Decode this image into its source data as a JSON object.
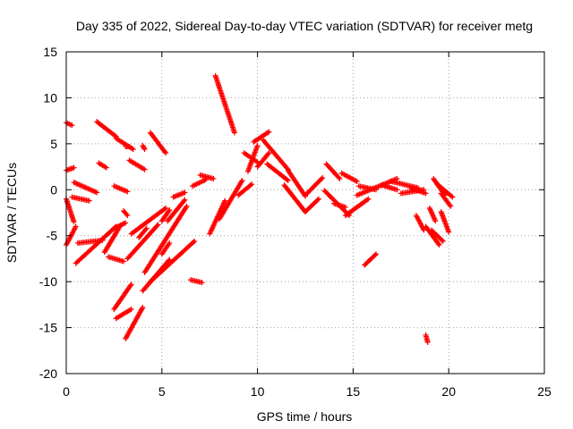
{
  "chart_data": {
    "type": "scatter",
    "title": "Day 335 of 2022, Sidereal Day-to-day VTEC variation (SDTVAR) for receiver metg",
    "xlabel": "GPS time / hours",
    "ylabel": "SDTVAR / TECUs",
    "xlim": [
      0,
      25
    ],
    "ylim": [
      -20,
      15
    ],
    "xticks": [
      0,
      5,
      10,
      15,
      20,
      25
    ],
    "yticks": [
      -20,
      -15,
      -10,
      -5,
      0,
      5,
      10,
      15
    ],
    "grid": true,
    "marker": "plus",
    "color": "#ff0000",
    "tracks": [
      {
        "x": [
          0.0,
          0.3
        ],
        "y": [
          7.3,
          7.0
        ]
      },
      {
        "x": [
          0.0,
          0.4
        ],
        "y": [
          2.1,
          2.4
        ]
      },
      {
        "x": [
          0.0,
          0.4
        ],
        "y": [
          -1.0,
          -3.5
        ]
      },
      {
        "x": [
          0.0,
          0.5
        ],
        "y": [
          -6.0,
          -4.0
        ]
      },
      {
        "x": [
          0.3,
          1.2
        ],
        "y": [
          -0.8,
          -1.2
        ]
      },
      {
        "x": [
          0.4,
          1.6
        ],
        "y": [
          0.8,
          -0.3
        ]
      },
      {
        "x": [
          0.5,
          2.6
        ],
        "y": [
          -8.0,
          -4.0
        ]
      },
      {
        "x": [
          0.6,
          1.9
        ],
        "y": [
          -5.8,
          -5.5
        ]
      },
      {
        "x": [
          1.6,
          2.6
        ],
        "y": [
          7.4,
          5.8
        ]
      },
      {
        "x": [
          2.6,
          3.5
        ],
        "y": [
          5.6,
          4.4
        ]
      },
      {
        "x": [
          1.7,
          2.1
        ],
        "y": [
          2.9,
          2.4
        ]
      },
      {
        "x": [
          2.5,
          3.2
        ],
        "y": [
          0.4,
          -0.2
        ]
      },
      {
        "x": [
          3.3,
          4.1
        ],
        "y": [
          3.2,
          2.2
        ]
      },
      {
        "x": [
          4.4,
          5.2
        ],
        "y": [
          6.2,
          4.0
        ]
      },
      {
        "x": [
          4.0,
          4.1
        ],
        "y": [
          4.8,
          4.4
        ]
      },
      {
        "x": [
          3.1,
          3.3
        ],
        "y": [
          4.7,
          4.7
        ]
      },
      {
        "x": [
          2.5,
          3.4
        ],
        "y": [
          -13.0,
          -10.3
        ]
      },
      {
        "x": [
          2.6,
          3.4
        ],
        "y": [
          -14.0,
          -13.0
        ]
      },
      {
        "x": [
          3.1,
          4.0
        ],
        "y": [
          -16.2,
          -12.8
        ]
      },
      {
        "x": [
          2.2,
          3.0
        ],
        "y": [
          -7.3,
          -7.8
        ]
      },
      {
        "x": [
          2.0,
          2.8
        ],
        "y": [
          -6.8,
          -4.0
        ]
      },
      {
        "x": [
          2.5,
          3.1
        ],
        "y": [
          -4.2,
          -3.6
        ]
      },
      {
        "x": [
          3.0,
          3.2
        ],
        "y": [
          -2.3,
          -2.8
        ]
      },
      {
        "x": [
          3.2,
          4.8
        ],
        "y": [
          -7.5,
          -3.8
        ]
      },
      {
        "x": [
          3.4,
          5.2
        ],
        "y": [
          -4.8,
          -2.0
        ]
      },
      {
        "x": [
          3.8,
          4.2
        ],
        "y": [
          -5.2,
          -4.2
        ]
      },
      {
        "x": [
          4.1,
          6.3
        ],
        "y": [
          -9.0,
          -1.8
        ]
      },
      {
        "x": [
          4.0,
          5.4
        ],
        "y": [
          -11.0,
          -7.6
        ]
      },
      {
        "x": [
          4.4,
          6.7
        ],
        "y": [
          -10.0,
          -5.6
        ]
      },
      {
        "x": [
          5.3,
          6.2
        ],
        "y": [
          -3.4,
          -1.1
        ]
      },
      {
        "x": [
          5.0,
          5.4
        ],
        "y": [
          -7.0,
          -5.8
        ]
      },
      {
        "x": [
          5.6,
          6.2
        ],
        "y": [
          -0.8,
          -0.3
        ]
      },
      {
        "x": [
          5.0,
          5.4
        ],
        "y": [
          -3.4,
          -2.2
        ]
      },
      {
        "x": [
          6.5,
          7.1
        ],
        "y": [
          -9.8,
          -10.1
        ]
      },
      {
        "x": [
          6.6,
          7.3
        ],
        "y": [
          0.4,
          1.1
        ]
      },
      {
        "x": [
          7.0,
          7.7
        ],
        "y": [
          1.6,
          1.2
        ]
      },
      {
        "x": [
          7.5,
          8.3
        ],
        "y": [
          -4.8,
          -1.2
        ]
      },
      {
        "x": [
          7.8,
          8.8
        ],
        "y": [
          12.4,
          6.2
        ]
      },
      {
        "x": [
          8.0,
          9.2
        ],
        "y": [
          -3.2,
          1.0
        ]
      },
      {
        "x": [
          9.0,
          9.7
        ],
        "y": [
          -0.6,
          0.6
        ]
      },
      {
        "x": [
          9.5,
          10.0
        ],
        "y": [
          2.0,
          4.8
        ]
      },
      {
        "x": [
          9.3,
          10.0
        ],
        "y": [
          4.0,
          3.0
        ]
      },
      {
        "x": [
          9.8,
          10.6
        ],
        "y": [
          5.2,
          6.3
        ]
      },
      {
        "x": [
          10.0,
          10.6
        ],
        "y": [
          2.5,
          4.0
        ]
      },
      {
        "x": [
          10.3,
          11.6
        ],
        "y": [
          5.4,
          2.2
        ]
      },
      {
        "x": [
          10.5,
          11.6
        ],
        "y": [
          2.8,
          1.0
        ]
      },
      {
        "x": [
          11.6,
          12.5
        ],
        "y": [
          2.1,
          -0.7
        ]
      },
      {
        "x": [
          11.4,
          12.5
        ],
        "y": [
          0.5,
          -2.4
        ]
      },
      {
        "x": [
          12.5,
          13.2
        ],
        "y": [
          -2.4,
          -1.0
        ]
      },
      {
        "x": [
          12.5,
          13.4
        ],
        "y": [
          -0.6,
          1.3
        ]
      },
      {
        "x": [
          13.6,
          14.3
        ],
        "y": [
          2.8,
          1.2
        ]
      },
      {
        "x": [
          13.5,
          14.8
        ],
        "y": [
          -0.1,
          -2.8
        ]
      },
      {
        "x": [
          14.0,
          14.6
        ],
        "y": [
          -1.5,
          -1.9
        ]
      },
      {
        "x": [
          14.4,
          15.2
        ],
        "y": [
          1.8,
          0.9
        ]
      },
      {
        "x": [
          14.6,
          15.8
        ],
        "y": [
          -2.8,
          -1.0
        ]
      },
      {
        "x": [
          15.2,
          17.3
        ],
        "y": [
          -0.6,
          1.2
        ]
      },
      {
        "x": [
          15.3,
          16.2
        ],
        "y": [
          0.4,
          0.0
        ]
      },
      {
        "x": [
          15.6,
          16.2
        ],
        "y": [
          -8.2,
          -7.0
        ]
      },
      {
        "x": [
          16.5,
          17.3
        ],
        "y": [
          0.5,
          0.0
        ]
      },
      {
        "x": [
          17.0,
          18.4
        ],
        "y": [
          0.9,
          0.2
        ]
      },
      {
        "x": [
          17.5,
          18.7
        ],
        "y": [
          -0.4,
          0.0
        ]
      },
      {
        "x": [
          18.0,
          18.8
        ],
        "y": [
          0.2,
          -0.4
        ]
      },
      {
        "x": [
          18.3,
          18.7
        ],
        "y": [
          -2.8,
          -4.4
        ]
      },
      {
        "x": [
          18.8,
          18.9
        ],
        "y": [
          -15.8,
          -16.6
        ]
      },
      {
        "x": [
          18.8,
          19.5
        ],
        "y": [
          -4.0,
          -6.0
        ]
      },
      {
        "x": [
          19.1,
          19.7
        ],
        "y": [
          -4.4,
          -5.6
        ]
      },
      {
        "x": [
          19.0,
          19.3
        ],
        "y": [
          -2.0,
          -3.4
        ]
      },
      {
        "x": [
          19.2,
          19.8
        ],
        "y": [
          1.2,
          -0.6
        ]
      },
      {
        "x": [
          19.4,
          20.2
        ],
        "y": [
          0.6,
          -0.8
        ]
      },
      {
        "x": [
          19.6,
          20.1
        ],
        "y": [
          -0.4,
          -1.8
        ]
      },
      {
        "x": [
          19.6,
          20.0
        ],
        "y": [
          -2.4,
          -4.6
        ]
      }
    ]
  }
}
